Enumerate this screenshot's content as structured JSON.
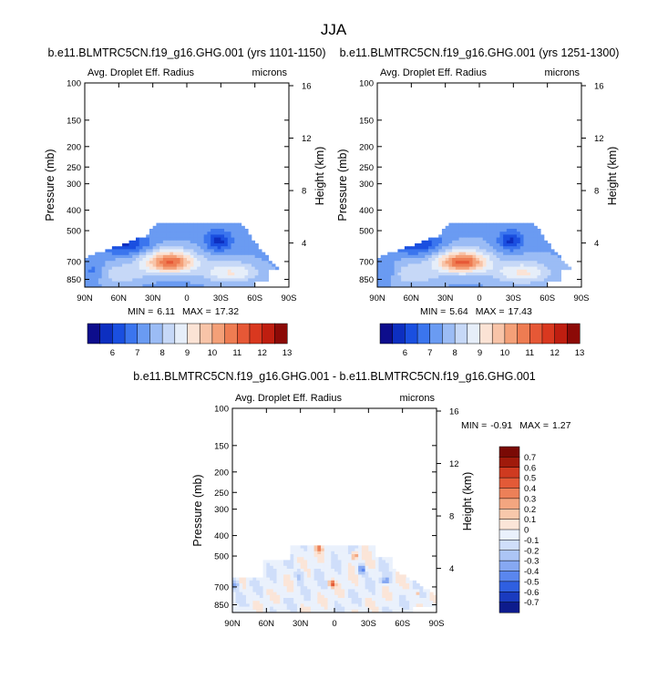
{
  "figure": {
    "season": "JJA"
  },
  "colors": {
    "abs_palette": [
      "#0d0d8c",
      "#0d2fc0",
      "#1a4fe0",
      "#3b75ee",
      "#6a9bf2",
      "#9bbcf5",
      "#c6d8f7",
      "#e6eef9",
      "#fbe3d5",
      "#f8c4a8",
      "#f4a078",
      "#ee7c52",
      "#e65836",
      "#d9381f",
      "#bf1e10",
      "#8c0a07"
    ],
    "diff_palette": [
      "#0d1b8c",
      "#1a3bbf",
      "#2f5fe0",
      "#5a86ee",
      "#86a8f2",
      "#acc5f5",
      "#cfdefa",
      "#eaf1fc",
      "#fbe5d8",
      "#f8c8ab",
      "#f3a680",
      "#ec8058",
      "#e35a37",
      "#cf3a20",
      "#a01a0b",
      "#7a0a05"
    ]
  },
  "chart_data": [
    {
      "type": "heatmap",
      "title": "b.e11.BLMTRC5CN.f19_g16.GHG.001 (yrs 1101-1150)",
      "left_label": "Avg. Droplet Eff. Radius",
      "right_label": "microns",
      "xlabel": "",
      "ylabel": "Pressure (mb)",
      "y2label": "Height (km)",
      "x_ticks": [
        "90N",
        "60N",
        "30N",
        "0",
        "30S",
        "60S",
        "90S"
      ],
      "y_ticks": [
        100,
        150,
        200,
        250,
        300,
        400,
        500,
        700,
        850
      ],
      "y2_ticks": [
        4,
        8,
        12,
        16
      ],
      "ylim": [
        100,
        925
      ],
      "min_label": "MIN =",
      "min": "6.11",
      "max_label": "MAX =",
      "max": "17.32",
      "colorbar_labels": [
        "6",
        "7",
        "8",
        "9",
        "10",
        "11",
        "12",
        "13"
      ],
      "field": "abs"
    },
    {
      "type": "heatmap",
      "title": "b.e11.BLMTRC5CN.f19_g16.GHG.001 (yrs 1251-1300)",
      "left_label": "Avg. Droplet Eff. Radius",
      "right_label": "microns",
      "xlabel": "",
      "ylabel": "Pressure (mb)",
      "y2label": "Height (km)",
      "x_ticks": [
        "90N",
        "60N",
        "30N",
        "0",
        "30S",
        "60S",
        "90S"
      ],
      "y_ticks": [
        100,
        150,
        200,
        250,
        300,
        400,
        500,
        700,
        850
      ],
      "y2_ticks": [
        4,
        8,
        12,
        16
      ],
      "ylim": [
        100,
        925
      ],
      "min_label": "MIN =",
      "min": "5.64",
      "max_label": "MAX =",
      "max": "17.43",
      "colorbar_labels": [
        "6",
        "7",
        "8",
        "9",
        "10",
        "11",
        "12",
        "13"
      ],
      "field": "abs"
    },
    {
      "type": "heatmap",
      "title": "b.e11.BLMTRC5CN.f19_g16.GHG.001 - b.e11.BLMTRC5CN.f19_g16.GHG.001",
      "left_label": "Avg. Droplet Eff. Radius",
      "right_label": "microns",
      "xlabel": "",
      "ylabel": "Pressure (mb)",
      "y2label": "Height (km)",
      "x_ticks": [
        "90N",
        "60N",
        "30N",
        "0",
        "30S",
        "60S",
        "90S"
      ],
      "y_ticks": [
        100,
        150,
        200,
        250,
        300,
        400,
        500,
        700,
        850
      ],
      "y2_ticks": [
        4,
        8,
        12,
        16
      ],
      "ylim": [
        100,
        925
      ],
      "min_label": "MIN =",
      "min": "-0.91",
      "max_label": "MAX =",
      "max": "1.27",
      "colorbar_labels": [
        "0.7",
        "0.6",
        "0.5",
        "0.4",
        "0.3",
        "0.2",
        "0.1",
        "0",
        "-0.1",
        "-0.2",
        "-0.3",
        "-0.4",
        "-0.5",
        "-0.6",
        "-0.7"
      ],
      "field": "diff"
    }
  ]
}
